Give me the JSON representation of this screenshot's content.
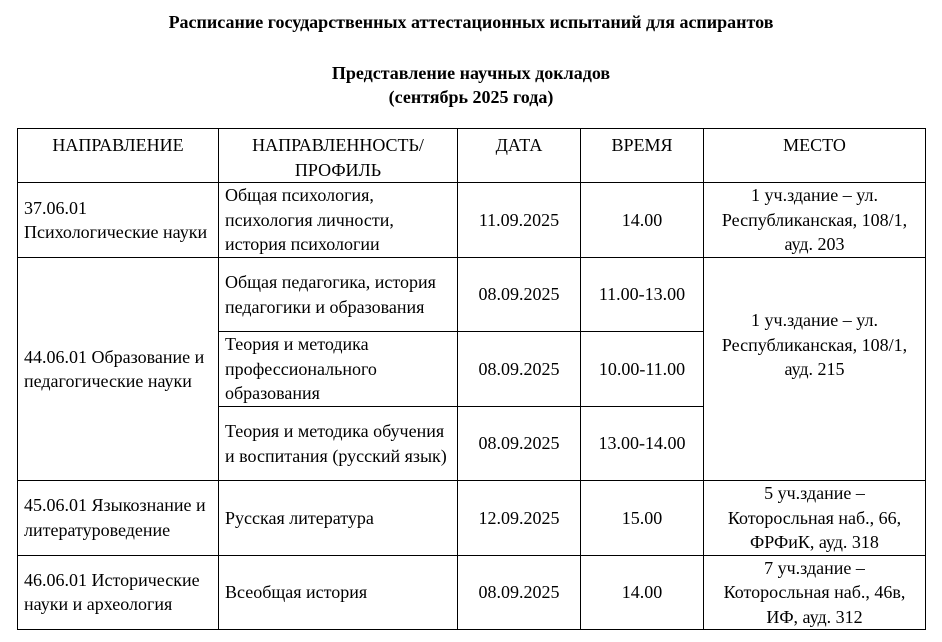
{
  "title": "Расписание государственных аттестационных испытаний для аспирантов",
  "subtitle": "Представление научных докладов",
  "period": "(сентябрь 2025 года)",
  "headers": [
    "НАПРАВЛЕНИЕ",
    "НАПРАВЛЕННОСТЬ/ ПРОФИЛЬ",
    "ДАТА",
    "ВРЕМЯ",
    "МЕСТО"
  ],
  "rows": [
    {
      "direction": "37.06.01 Психологические науки",
      "profile": "Общая психология, психология личности, история психологии",
      "date": "11.09.2025",
      "time": "14.00",
      "place": "1 уч.здание – ул. Республиканская, 108/1, ауд. 203"
    },
    {
      "direction": "44.06.01 Образование и педагогические науки",
      "profile": "Общая педагогика, история педагогики и образования",
      "date": "08.09.2025",
      "time": "11.00-13.00",
      "place": "1 уч.здание – ул. Республиканская, 108/1, ауд. 215"
    },
    {
      "profile": "Теория и методика профессионального образования",
      "date": "08.09.2025",
      "time": "10.00-11.00"
    },
    {
      "profile": "Теория и методика обучения и воспитания (русский язык)",
      "date": "08.09.2025",
      "time": "13.00-14.00"
    },
    {
      "direction": "45.06.01 Языкознание и литературоведение",
      "profile": "Русская литература",
      "date": "12.09.2025",
      "time": "15.00",
      "place": "5 уч.здание – Которосльная наб., 66, ФРФиК, ауд. 318"
    },
    {
      "direction": "46.06.01 Исторические науки и археология",
      "profile": "Всеобщая история",
      "date": "08.09.2025",
      "time": "14.00",
      "place": "7 уч.здание – Которосльная наб., 46в, ИФ, ауд. 312"
    }
  ]
}
